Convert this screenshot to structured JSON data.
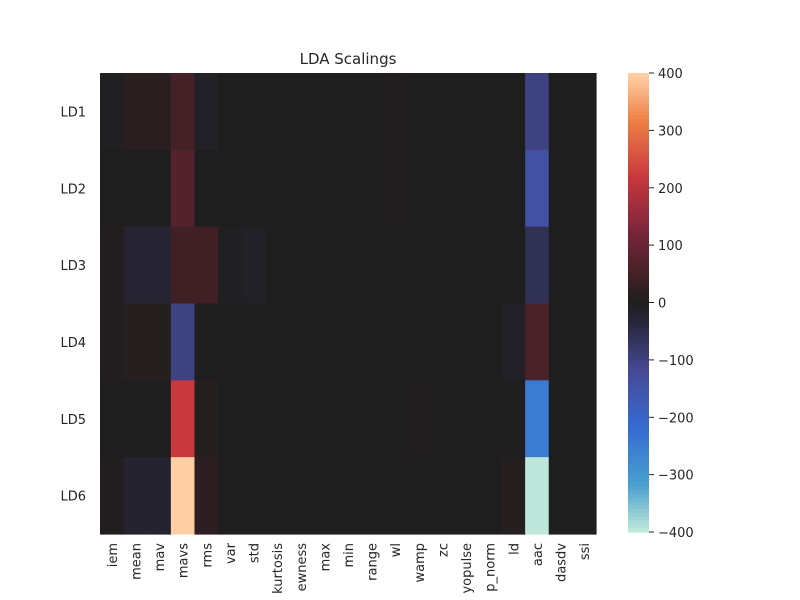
{
  "chart_data": {
    "type": "heatmap",
    "title": "LDA Scalings",
    "rows": [
      "LD1",
      "LD2",
      "LD3",
      "LD4",
      "LD5",
      "LD6"
    ],
    "columns": [
      "iem",
      "mean",
      "mav",
      "mavs",
      "rms",
      "var",
      "std",
      "kurtosis",
      "skewness",
      "max",
      "min",
      "range",
      "wl",
      "wamp",
      "zc",
      "myopulse",
      "ssp_norm",
      "ld",
      "aac",
      "dasdv",
      "ssi"
    ],
    "column_labels_as_shown": [
      "iem",
      "mean",
      "mav",
      "mavs",
      "rms",
      "var",
      "std",
      "kurtosis",
      "ewness",
      "max",
      "min",
      "range",
      "wl",
      "wamp",
      "zc",
      "yopulse",
      "p_norm",
      "ld",
      "aac",
      "dasdv",
      "ssi"
    ],
    "values": [
      [
        -5,
        15,
        15,
        50,
        -10,
        0,
        0,
        0,
        0,
        0,
        0,
        0,
        5,
        0,
        0,
        0,
        0,
        0,
        -100,
        0,
        0
      ],
      [
        0,
        0,
        0,
        70,
        0,
        0,
        0,
        0,
        0,
        0,
        0,
        0,
        5,
        0,
        0,
        0,
        0,
        0,
        -140,
        0,
        0
      ],
      [
        5,
        -25,
        -25,
        45,
        45,
        -5,
        -10,
        0,
        0,
        0,
        0,
        0,
        0,
        0,
        0,
        0,
        0,
        0,
        -60,
        0,
        0
      ],
      [
        5,
        10,
        10,
        -100,
        0,
        0,
        0,
        0,
        0,
        0,
        0,
        0,
        0,
        0,
        0,
        0,
        0,
        -10,
        60,
        0,
        0
      ],
      [
        0,
        0,
        0,
        220,
        10,
        0,
        0,
        0,
        0,
        0,
        0,
        0,
        0,
        5,
        0,
        0,
        0,
        0,
        -250,
        0,
        0
      ],
      [
        5,
        -20,
        -20,
        400,
        20,
        0,
        0,
        0,
        0,
        0,
        0,
        0,
        0,
        0,
        0,
        0,
        0,
        10,
        -400,
        0,
        0
      ]
    ],
    "colormap": "icefire",
    "vmin": -400,
    "vmax": 400,
    "colorbar_ticks": [
      400,
      300,
      200,
      100,
      0,
      -100,
      -200,
      -300,
      -400
    ],
    "colorbar_tick_labels": [
      "400",
      "300",
      "200",
      "100",
      "0",
      "−100",
      "−200",
      "−300",
      "−400"
    ],
    "xlabel": "",
    "ylabel": ""
  },
  "colors": {
    "text": "#262626",
    "background": "#ffffff"
  }
}
